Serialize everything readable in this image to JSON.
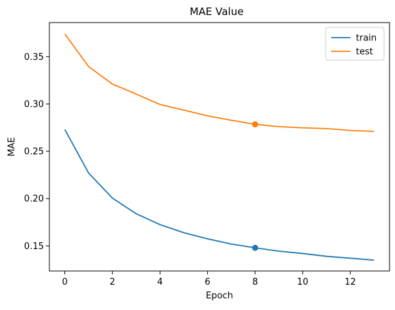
{
  "chart_data": {
    "type": "line",
    "title": "MAE Value",
    "xlabel": "Epoch",
    "ylabel": "MAE",
    "xlim": [
      -0.65,
      13.65
    ],
    "ylim": [
      0.1235,
      0.386
    ],
    "xticks": [
      0,
      2,
      4,
      6,
      8,
      10,
      12
    ],
    "yticks": [
      0.15,
      0.2,
      0.25,
      0.3,
      0.35
    ],
    "ytick_labels": [
      "0.15",
      "0.20",
      "0.25",
      "0.30",
      "0.35"
    ],
    "grid": false,
    "legend_position": "top-right",
    "x": [
      0,
      1,
      2,
      3,
      4,
      5,
      6,
      7,
      8,
      9,
      10,
      11,
      12,
      13
    ],
    "series": [
      {
        "name": "train",
        "color": "#1f77b4",
        "values": [
          0.273,
          0.227,
          0.2005,
          0.184,
          0.1725,
          0.164,
          0.1575,
          0.152,
          0.148,
          0.1445,
          0.142,
          0.139,
          0.137,
          0.135
        ],
        "marker_index": 8
      },
      {
        "name": "test",
        "color": "#ff7f0e",
        "values": [
          0.374,
          0.3395,
          0.321,
          0.3105,
          0.2995,
          0.2935,
          0.2875,
          0.2828,
          0.2785,
          0.276,
          0.2748,
          0.274,
          0.272,
          0.271
        ],
        "marker_index": 8
      }
    ]
  }
}
